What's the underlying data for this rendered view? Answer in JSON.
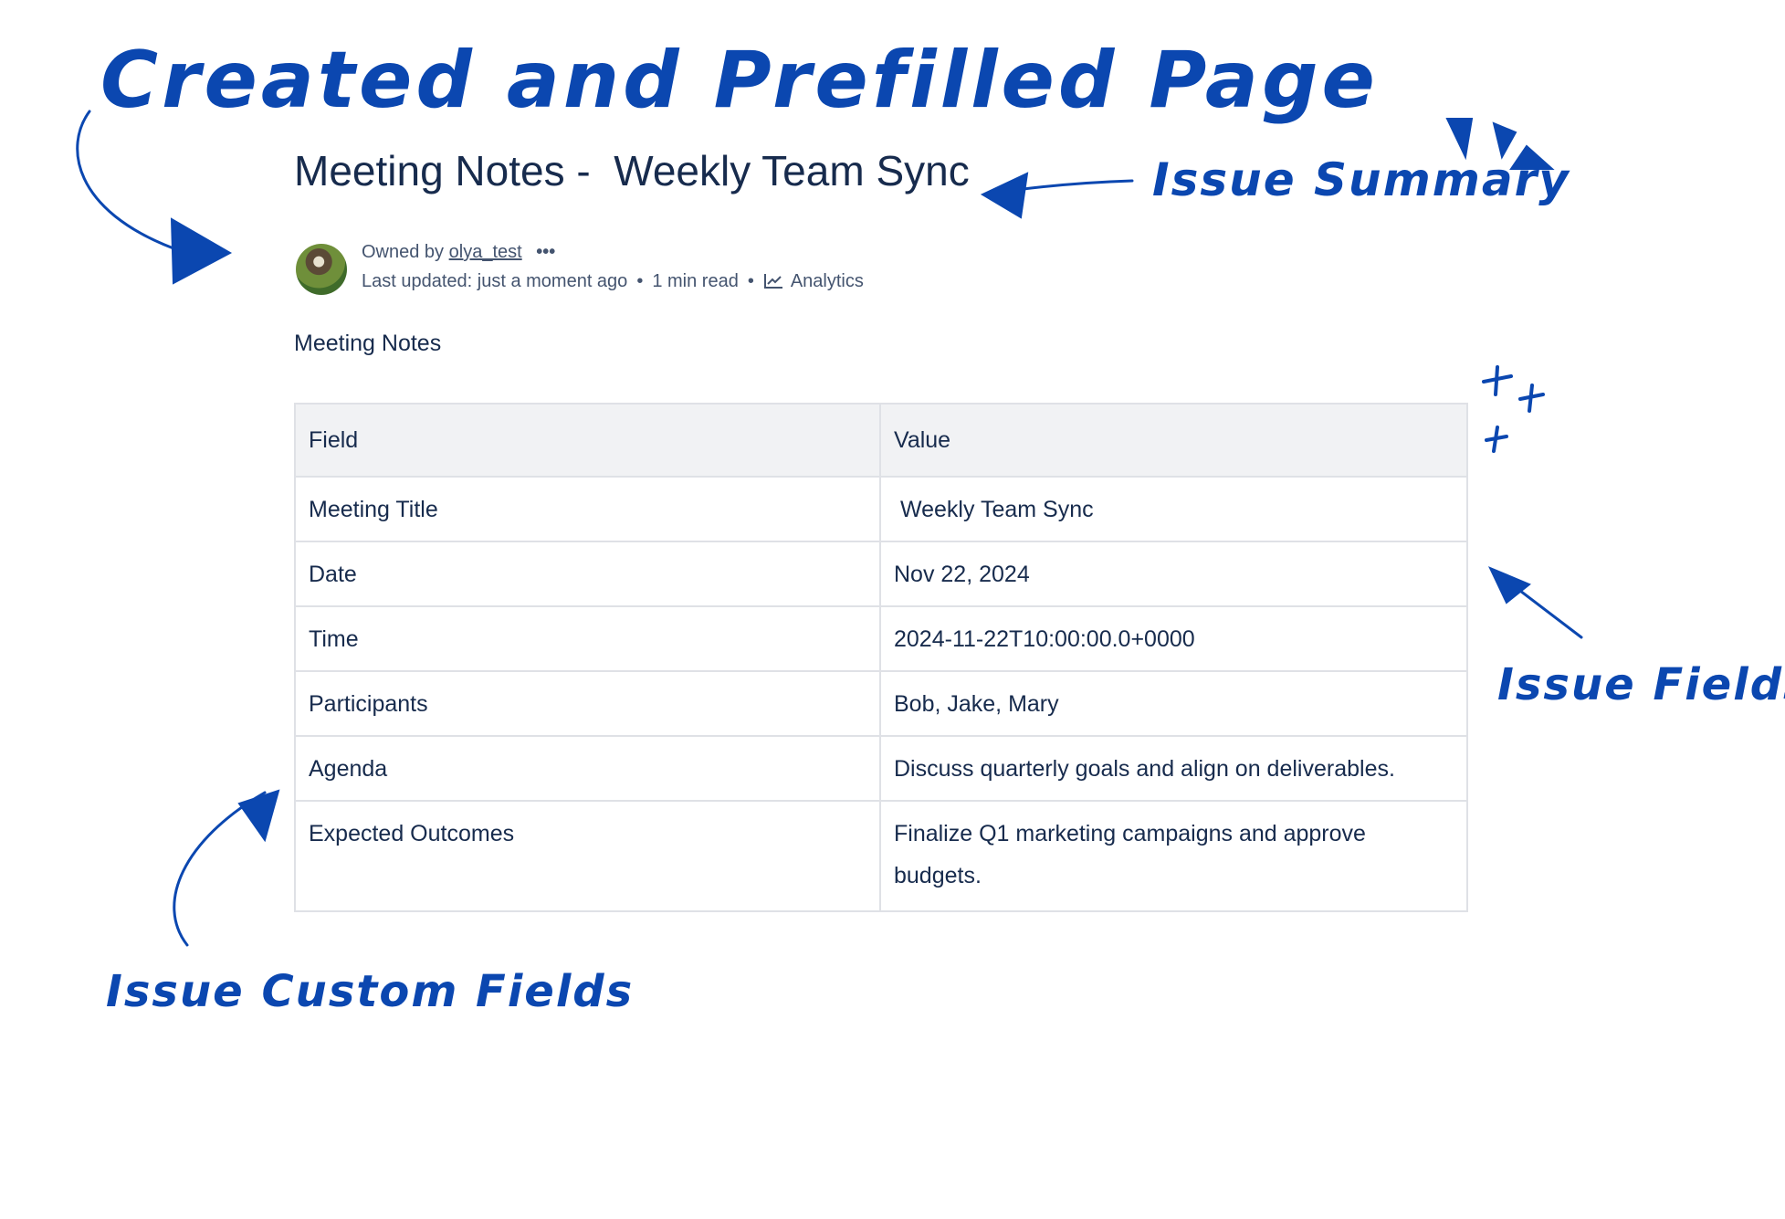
{
  "annotations": {
    "title": "Created and Prefilled Page",
    "summary": "Issue Summary",
    "fields": "Issue Fields",
    "custom_fields": "Issue Custom Fields",
    "color": "#0b47b0"
  },
  "page": {
    "title": "Meeting Notes -  Weekly Team Sync",
    "owned_by_label": "Owned by",
    "owner": "olya_test",
    "more_icon": "more-horizontal-icon",
    "last_updated": "Last updated: just a moment ago",
    "read_time": "1 min read",
    "analytics_label": "Analytics",
    "section_heading": "Meeting Notes"
  },
  "table": {
    "headers": [
      "Field",
      "Value"
    ],
    "rows": [
      [
        "Meeting Title",
        " Weekly Team Sync"
      ],
      [
        "Date",
        "Nov 22, 2024"
      ],
      [
        "Time",
        "2024-11-22T10:00:00.0+0000"
      ],
      [
        "Participants",
        "Bob, Jake, Mary"
      ],
      [
        "Agenda",
        "Discuss quarterly goals and align on deliverables."
      ],
      [
        "Expected Outcomes",
        "Finalize Q1 marketing campaigns and approve budgets."
      ]
    ]
  }
}
